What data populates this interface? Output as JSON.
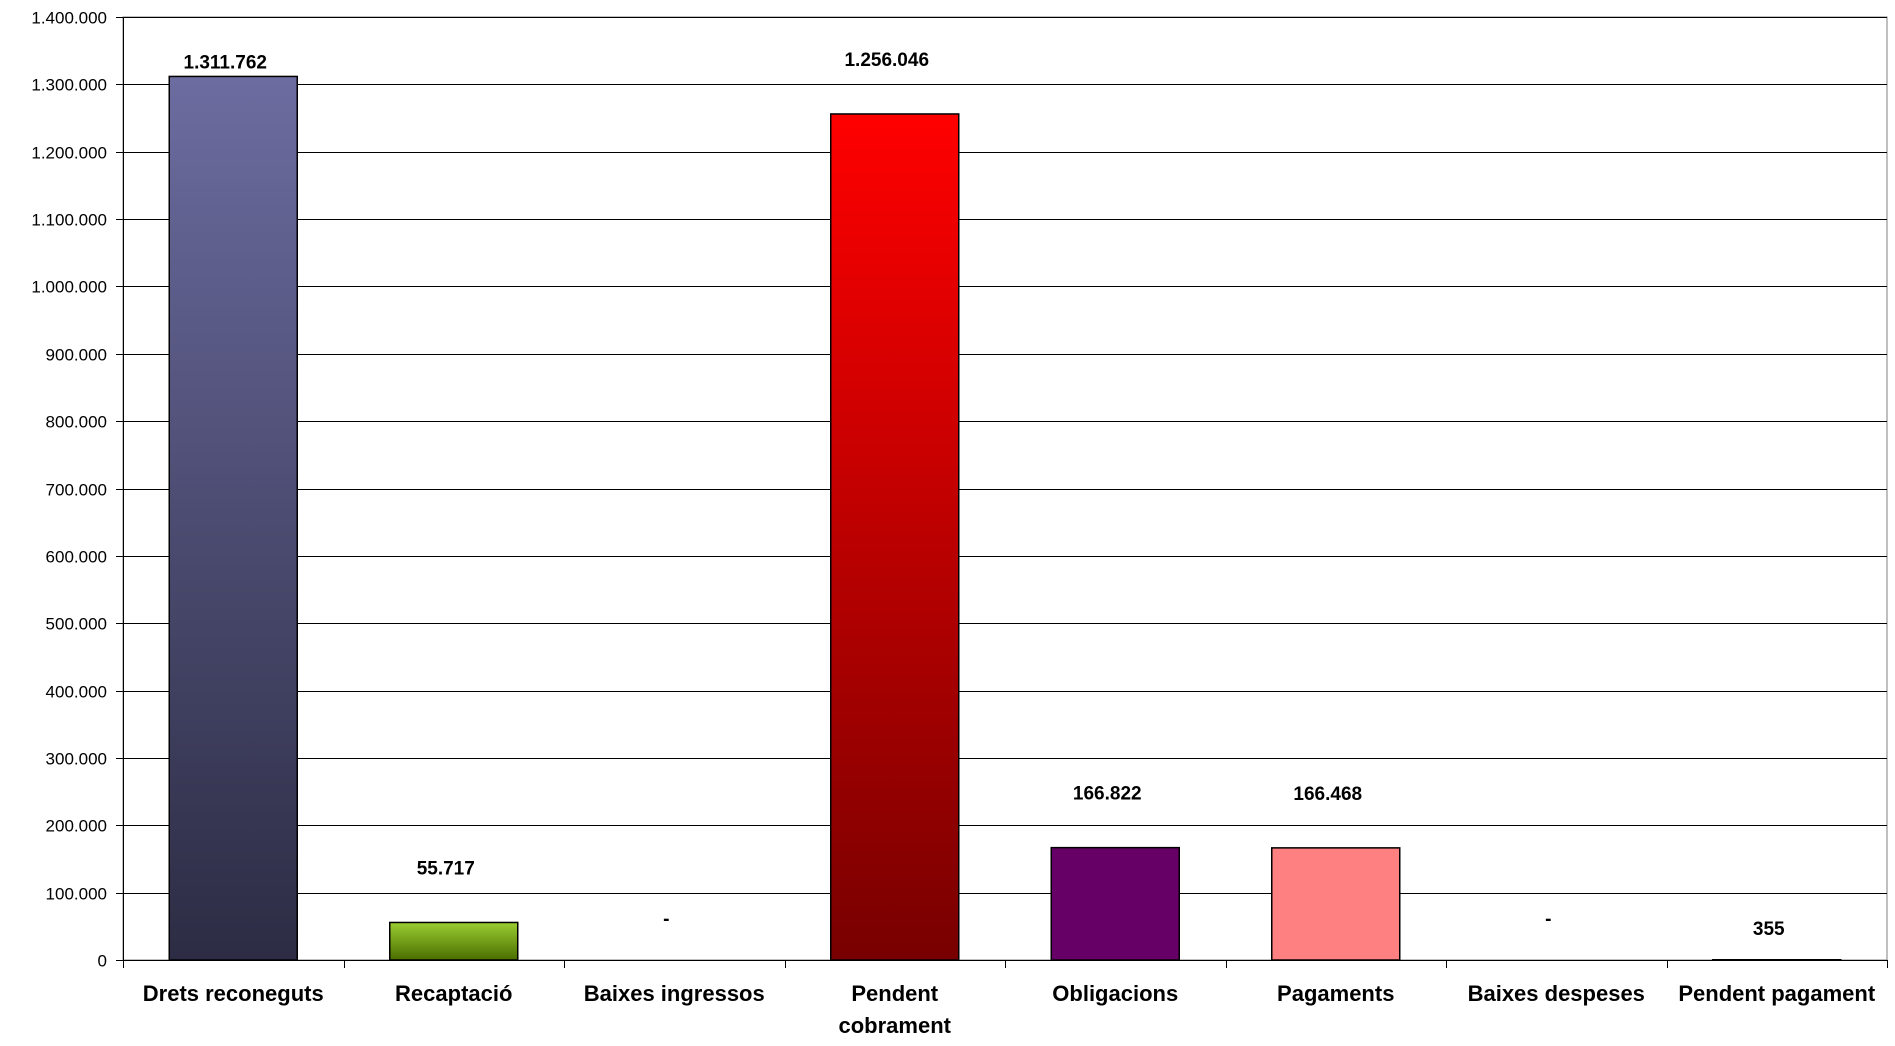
{
  "chart_data": {
    "type": "bar",
    "categories": [
      "Drets reconeguts",
      "Recaptació",
      "Baixes ingressos",
      "Pendent cobrament",
      "Obligacions",
      "Pagaments",
      "Baixes despeses",
      "Pendent pagament"
    ],
    "values": [
      1311762,
      55717,
      0,
      1256046,
      166822,
      166468,
      0,
      355
    ],
    "data_labels": [
      "1.311.762",
      "55.717",
      "-",
      "1.256.046",
      "166.822",
      "166.468",
      "-",
      "355"
    ],
    "ylim": [
      0,
      1400000
    ],
    "y_ticks": [
      0,
      100000,
      200000,
      300000,
      400000,
      500000,
      600000,
      700000,
      800000,
      900000,
      1000000,
      1100000,
      1200000,
      1300000,
      1400000
    ],
    "y_tick_labels": [
      "0",
      "100.000",
      "200.000",
      "300.000",
      "400.000",
      "500.000",
      "600.000",
      "700.000",
      "800.000",
      "900.000",
      "1.000.000",
      "1.100.000",
      "1.200.000",
      "1.300.000",
      "1.400.000"
    ],
    "grid": true,
    "legend": "none",
    "bar_colors": [
      [
        "#6c6ca0",
        "#2c2c44"
      ],
      [
        "#9acd32",
        "#4a6e00"
      ],
      [
        "#cccccc",
        "#888888"
      ],
      [
        "#ff0000",
        "#780000"
      ],
      [
        "#660066",
        "#660066"
      ],
      [
        "#ff8080",
        "#ff8080"
      ],
      [
        "#cccccc",
        "#888888"
      ],
      [
        "#333333",
        "#111111"
      ]
    ]
  }
}
